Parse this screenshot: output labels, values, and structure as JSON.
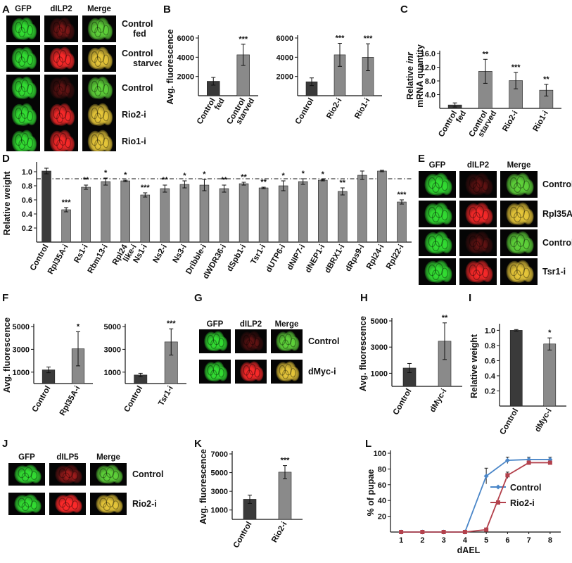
{
  "panel_letters": {
    "A": "A",
    "B": "B",
    "C": "C",
    "D": "D",
    "E": "E",
    "F": "F",
    "G": "G",
    "H": "H",
    "I": "I",
    "J": "J",
    "K": "K",
    "L": "L"
  },
  "image_panels": {
    "A": {
      "headers": [
        "GFP",
        "dILP2",
        "Merge"
      ],
      "rows": [
        {
          "label_lines": [
            "Control",
            "fed"
          ],
          "red": 0.25,
          "yellow": 0.3
        },
        {
          "label_lines": [
            "Control",
            "starved"
          ],
          "red": 0.9,
          "yellow": 0.9
        },
        {
          "label_lines": [
            "Control"
          ],
          "red": 0.15,
          "yellow": 0.2
        },
        {
          "label_lines": [
            "Rio2-i"
          ],
          "red": 0.85,
          "yellow": 0.85
        },
        {
          "label_lines": [
            "Rio1-i"
          ],
          "red": 0.85,
          "yellow": 0.85
        }
      ]
    },
    "E": {
      "headers": [
        "GFP",
        "dILP2",
        "Merge"
      ],
      "rows": [
        {
          "label_lines": [
            "Control"
          ],
          "red": 0.15,
          "yellow": 0.2
        },
        {
          "label_lines": [
            "Rpl35A-i"
          ],
          "red": 0.85,
          "yellow": 0.85
        },
        {
          "label_lines": [
            "Control"
          ],
          "red": 0.15,
          "yellow": 0.2
        },
        {
          "label_lines": [
            "Tsr1-i"
          ],
          "red": 0.85,
          "yellow": 0.85
        }
      ]
    },
    "G": {
      "headers": [
        "GFP",
        "dILP2",
        "Merge"
      ],
      "rows": [
        {
          "label_lines": [
            "Control"
          ],
          "red": 0.1,
          "yellow": 0.15
        },
        {
          "label_lines": [
            "dMyc-i"
          ],
          "red": 0.9,
          "yellow": 0.9
        }
      ]
    },
    "J": {
      "headers": [
        "GFP",
        "dILP5",
        "Merge"
      ],
      "rows": [
        {
          "label_lines": [
            "Control"
          ],
          "red": 0.35,
          "yellow": 0.35
        },
        {
          "label_lines": [
            "Rio2-i"
          ],
          "red": 1.0,
          "yellow": 1.0
        }
      ]
    }
  },
  "chart_data": [
    {
      "id": "B1",
      "type": "bar",
      "ylabel": "Avg. fluorescence",
      "yticks": [
        2000,
        4000,
        6000
      ],
      "ylim": [
        0,
        6000
      ],
      "categories": [
        [
          "Control",
          "fed"
        ],
        [
          "Control",
          "starved"
        ]
      ],
      "values": [
        1500,
        4250
      ],
      "errors": [
        400,
        1100
      ],
      "significance": [
        "",
        "***"
      ],
      "colors": [
        "#3a3a3a",
        "#8a8a8a"
      ]
    },
    {
      "id": "B2",
      "type": "bar",
      "ylabel": "",
      "yticks": [
        2000,
        4000,
        6000
      ],
      "ylim": [
        0,
        6000
      ],
      "categories": [
        [
          "Control"
        ],
        [
          "Rio2-i"
        ],
        [
          "Rio1-i"
        ]
      ],
      "values": [
        1450,
        4250,
        4000
      ],
      "errors": [
        400,
        1200,
        1400
      ],
      "significance": [
        "",
        "***",
        "***"
      ],
      "colors": [
        "#3a3a3a",
        "#8a8a8a",
        "#8a8a8a"
      ]
    },
    {
      "id": "C",
      "type": "bar",
      "ylabel_parts": [
        "Relative ",
        "inr"
      ],
      "ylabel2": "mRNA quantity",
      "yticks": [
        4.0,
        8.0,
        12.0,
        16.0
      ],
      "ytick_labels": [
        "4.0",
        "8.0",
        "12.0",
        "16.0"
      ],
      "ylim": [
        0,
        16
      ],
      "categories": [
        [
          "Control",
          "fed"
        ],
        [
          "Control",
          "starved"
        ],
        [
          "Rio2-i"
        ],
        [
          "Rio1-i"
        ]
      ],
      "values": [
        1.0,
        10.8,
        8.1,
        5.3
      ],
      "errors": [
        0.6,
        3.5,
        2.4,
        1.7
      ],
      "significance": [
        "",
        "**",
        "***",
        "**"
      ],
      "colors": [
        "#3a3a3a",
        "#8a8a8a",
        "#8a8a8a",
        "#8a8a8a"
      ]
    },
    {
      "id": "D",
      "type": "bar",
      "ylabel": "Relative weight",
      "yticks": [
        0.2,
        0.4,
        0.6,
        0.8,
        1.0
      ],
      "ytick_labels": [
        "0.2",
        "0.4",
        "0.6",
        "0.8",
        "1.0"
      ],
      "ylim": [
        0,
        1.1
      ],
      "reference_line": 0.9,
      "categories": [
        [
          "Control"
        ],
        [
          "Rpl35A-i"
        ],
        [
          "Rs1-i"
        ],
        [
          "Rbm13-i"
        ],
        [
          "Rpl24",
          "like-i"
        ],
        [
          "Ns1-i"
        ],
        [
          "Ns2-i"
        ],
        [
          "Ns3-i"
        ],
        [
          "Dribble-i"
        ],
        [
          "dWDR36-i"
        ],
        [
          "dSpb1-i"
        ],
        [
          "Tsr1-i"
        ],
        [
          "dUTP6-i"
        ],
        [
          "dNIP7-i"
        ],
        [
          "dNEP1-i"
        ],
        [
          "dBRX1-i"
        ],
        [
          "dRps9-i"
        ],
        [
          "Rpl24-i"
        ],
        [
          "Rpl22-i"
        ]
      ],
      "values": [
        1.01,
        0.46,
        0.78,
        0.86,
        0.87,
        0.67,
        0.76,
        0.82,
        0.81,
        0.76,
        0.83,
        0.77,
        0.8,
        0.86,
        0.88,
        0.72,
        0.95,
        1.01,
        0.57
      ],
      "errors": [
        0.04,
        0.03,
        0.03,
        0.05,
        0.01,
        0.03,
        0.05,
        0.05,
        0.08,
        0.05,
        0.02,
        0.01,
        0.07,
        0.04,
        0.01,
        0.05,
        0.06,
        0.01,
        0.03
      ],
      "significance": [
        "",
        "***",
        "**",
        "*",
        "*",
        "***",
        "**",
        "*",
        "*",
        "**",
        "**",
        "**",
        "*",
        "*",
        "*",
        "**",
        "",
        "",
        "***"
      ],
      "colors": [
        "#3a3a3a",
        "#8a8a8a",
        "#8a8a8a",
        "#8a8a8a",
        "#8a8a8a",
        "#8a8a8a",
        "#8a8a8a",
        "#8a8a8a",
        "#8a8a8a",
        "#8a8a8a",
        "#8a8a8a",
        "#8a8a8a",
        "#8a8a8a",
        "#8a8a8a",
        "#8a8a8a",
        "#8a8a8a",
        "#8a8a8a",
        "#8a8a8a",
        "#8a8a8a"
      ]
    },
    {
      "id": "F1",
      "type": "bar",
      "ylabel": "Avg. fluorescence",
      "yticks": [
        1000,
        3000,
        5000
      ],
      "ylim": [
        0,
        5000
      ],
      "categories": [
        [
          "Control"
        ],
        [
          "Rpl35A-i"
        ]
      ],
      "values": [
        1200,
        3050
      ],
      "errors": [
        250,
        1500
      ],
      "significance": [
        "",
        "*"
      ],
      "colors": [
        "#3a3a3a",
        "#8a8a8a"
      ]
    },
    {
      "id": "F2",
      "type": "bar",
      "ylabel": "",
      "yticks": [
        1000,
        3000,
        5000
      ],
      "ylim": [
        0,
        5000
      ],
      "categories": [
        [
          "Control"
        ],
        [
          "Tsr1-i"
        ]
      ],
      "values": [
        750,
        3650
      ],
      "errors": [
        150,
        1150
      ],
      "significance": [
        "",
        "***"
      ],
      "colors": [
        "#3a3a3a",
        "#8a8a8a"
      ]
    },
    {
      "id": "H",
      "type": "bar",
      "ylabel": "Avg. fluorescence",
      "yticks": [
        1000,
        3000,
        5000
      ],
      "ylim": [
        0,
        5000
      ],
      "categories": [
        [
          "Control"
        ],
        [
          "dMyc-i"
        ]
      ],
      "values": [
        1400,
        3450
      ],
      "errors": [
        350,
        1400
      ],
      "significance": [
        "",
        "**"
      ],
      "colors": [
        "#3a3a3a",
        "#8a8a8a"
      ]
    },
    {
      "id": "I",
      "type": "bar",
      "ylabel": "Relative weight",
      "yticks": [
        0.2,
        0.4,
        0.6,
        0.8,
        1.0
      ],
      "ytick_labels": [
        "0.2",
        "0.4",
        "0.6",
        "0.8",
        "1.0"
      ],
      "ylim": [
        0,
        1.05
      ],
      "categories": [
        [
          "Control"
        ],
        [
          "dMyc-i"
        ]
      ],
      "values": [
        1.0,
        0.82
      ],
      "errors": [
        0.01,
        0.08
      ],
      "significance": [
        "",
        "*"
      ],
      "colors": [
        "#3a3a3a",
        "#8a8a8a"
      ]
    },
    {
      "id": "K",
      "type": "bar",
      "ylabel": "Avg. fluorescence",
      "yticks": [
        1000,
        3000,
        5000,
        7000
      ],
      "ylim": [
        0,
        7000
      ],
      "categories": [
        [
          "Control"
        ],
        [
          "Rio2-i"
        ]
      ],
      "values": [
        2150,
        5050
      ],
      "errors": [
        450,
        700
      ],
      "significance": [
        "",
        "***"
      ],
      "colors": [
        "#3a3a3a",
        "#8a8a8a"
      ]
    },
    {
      "id": "L",
      "type": "line",
      "ylabel": "% of pupae",
      "xlabel": "dAEL",
      "x": [
        1,
        2,
        3,
        4,
        5,
        6,
        7,
        8
      ],
      "xlim": [
        0.5,
        8.5
      ],
      "ylim": [
        0,
        100
      ],
      "yticks": [
        20,
        40,
        60,
        80,
        100
      ],
      "series": [
        {
          "name": "Control",
          "color": "#4a86c8",
          "values": [
            0,
            0,
            0,
            0,
            71,
            91,
            92,
            92
          ],
          "errors": [
            0,
            0,
            0,
            0,
            10,
            4,
            3,
            3
          ]
        },
        {
          "name": "Rio2-i",
          "color": "#b3414c",
          "values": [
            0,
            0,
            0,
            0,
            3,
            72,
            88,
            88
          ],
          "errors": [
            0,
            0,
            0,
            0,
            2,
            4,
            2,
            2
          ]
        }
      ]
    }
  ]
}
